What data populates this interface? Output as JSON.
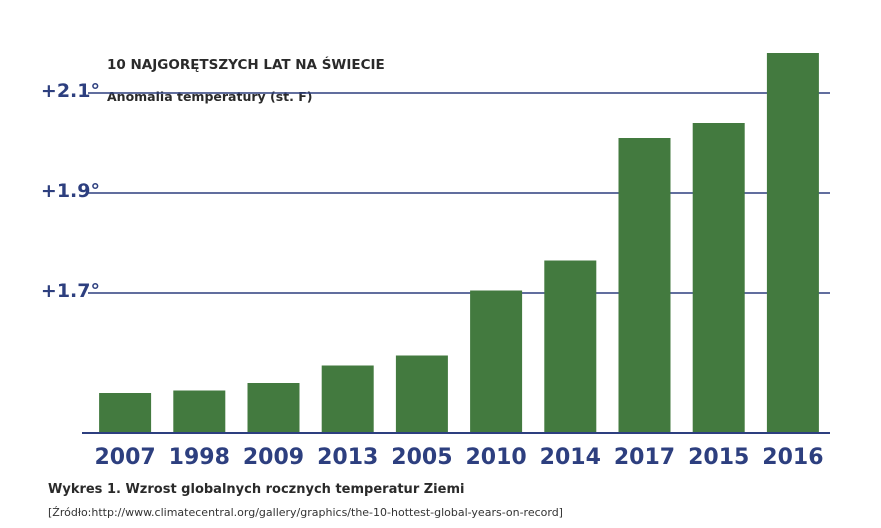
{
  "chart_data": {
    "type": "bar",
    "title": "10 NAJGORĘTSZYCH LAT NA ŚWIECIE",
    "ylabel": "Anomalia temperatury (st. F)",
    "categories": [
      "2007",
      "1998",
      "2009",
      "2013",
      "2005",
      "2010",
      "2014",
      "2017",
      "2015",
      "2016"
    ],
    "values": [
      1.5,
      1.505,
      1.52,
      1.555,
      1.575,
      1.705,
      1.765,
      2.01,
      2.04,
      2.18
    ],
    "yticks": [
      {
        "value": 1.7,
        "label": "+1.7°"
      },
      {
        "value": 1.9,
        "label": "+1.9°"
      },
      {
        "value": 2.1,
        "label": "+2.1°"
      }
    ],
    "ylim": [
      1.42,
      2.2
    ],
    "grid": true,
    "bar_color": "#437a3f",
    "axis_color": "#2d3f7f"
  },
  "caption": "Wykres 1. Wzrost globalnych rocznych temperatur Ziemi",
  "source": "[Źródło:http://www.climatecentral.org/gallery/graphics/the-10-hottest-global-years-on-record]"
}
